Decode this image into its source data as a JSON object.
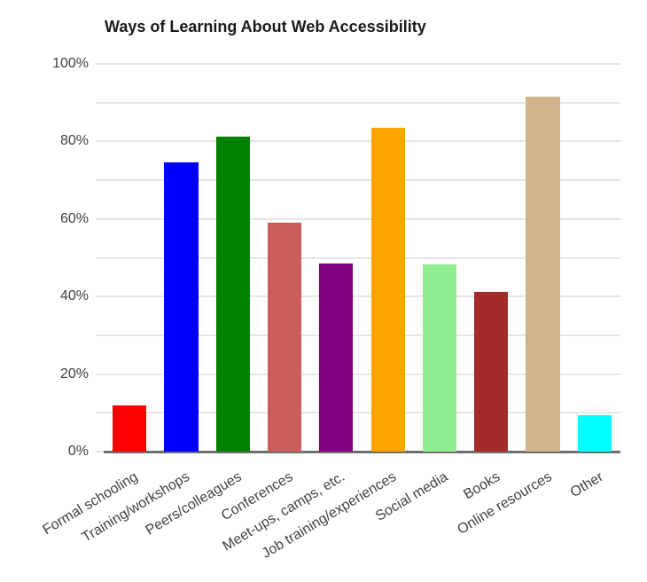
{
  "chart_data": {
    "type": "bar",
    "title": "Ways of Learning About Web Accessibility",
    "categories": [
      "Formal schooling",
      "Training/workshops",
      "Peers/colleagues",
      "Conferences",
      "Meet-ups, camps, etc.",
      "Job training/experiences",
      "Social media",
      "Books",
      "Online resources",
      "Other"
    ],
    "values": [
      11.9,
      74.7,
      81.2,
      59.0,
      48.6,
      83.5,
      48.3,
      41.2,
      91.5,
      9.4
    ],
    "bar_colors": [
      "#ff0000",
      "#0000ff",
      "#008000",
      "#cd5c5c",
      "#800080",
      "#ffa500",
      "#90ee90",
      "#a52a2a",
      "#d2b48c",
      "#00ffff"
    ],
    "xlabel": "",
    "ylabel": "",
    "ylim": [
      0,
      100
    ],
    "y_ticks": [
      {
        "label": "0%",
        "value": 0
      },
      {
        "label": "20%",
        "value": 20
      },
      {
        "label": "40%",
        "value": 40
      },
      {
        "label": "60%",
        "value": 60
      },
      {
        "label": "80%",
        "value": 80
      },
      {
        "label": "100%",
        "value": 100
      }
    ],
    "y_minor_grid_step": 10,
    "grid": true,
    "legend_position": "none",
    "styles": {
      "gridline_color": "#e6e6e6",
      "axis_line_color": "#6e6e6e",
      "tick_label_color": "#404040",
      "title_color": "#1a1a1a",
      "background": "#ffffff"
    }
  }
}
